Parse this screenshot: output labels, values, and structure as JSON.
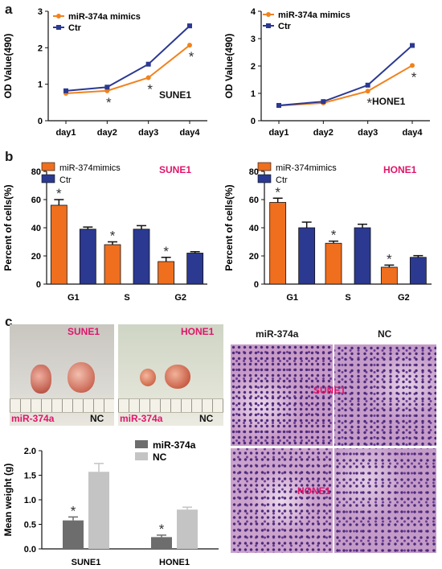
{
  "panels": {
    "a": "a",
    "b": "b",
    "c": "c"
  },
  "colors": {
    "orange": "#F0831F",
    "blue": "#2B3990",
    "orange_bar": "#EF6F1F",
    "pink": "#E0156A",
    "dark_grey": "#6D6D6D",
    "light_grey": "#C4C4C4"
  },
  "chart_data": [
    {
      "id": "a-sune1",
      "type": "line",
      "x": [
        "day1",
        "day2",
        "day3",
        "day4"
      ],
      "series": [
        {
          "name": "miR-374a mimics",
          "values": [
            0.75,
            0.82,
            1.18,
            2.07
          ]
        },
        {
          "name": "Ctr",
          "values": [
            0.82,
            0.92,
            1.55,
            2.6
          ]
        }
      ],
      "ylabel": "OD Value(490)",
      "ylim": [
        0,
        3
      ],
      "yticks": [
        "0",
        "1",
        "2",
        "3"
      ],
      "annotation": "SUNE1",
      "significance": [
        "",
        "*",
        "*",
        "*"
      ]
    },
    {
      "id": "a-hone1",
      "type": "line",
      "x": [
        "day1",
        "day2",
        "day3",
        "day4"
      ],
      "series": [
        {
          "name": "miR-374a mimics",
          "values": [
            0.55,
            0.65,
            1.08,
            2.02
          ]
        },
        {
          "name": "Ctr",
          "values": [
            0.56,
            0.7,
            1.3,
            2.75
          ]
        }
      ],
      "ylabel": "OD Value(490)",
      "ylim": [
        0,
        4
      ],
      "yticks": [
        "0",
        "1",
        "2",
        "3",
        "4"
      ],
      "annotation": "HONE1",
      "significance": [
        "",
        "",
        "*",
        "*"
      ]
    },
    {
      "id": "b-sune1",
      "type": "bar",
      "categories": [
        "G1",
        "S",
        "G2"
      ],
      "series": [
        {
          "name": "miR-374mimics",
          "values": [
            56,
            28,
            16
          ],
          "errors": [
            4,
            2,
            3
          ]
        },
        {
          "name": "Ctr",
          "values": [
            39,
            39,
            22
          ],
          "errors": [
            1.5,
            2.5,
            1
          ]
        }
      ],
      "ylabel": "Percent of cells(%)",
      "ylim": [
        0,
        80
      ],
      "yticks": [
        "0",
        "20",
        "40",
        "60",
        "80"
      ],
      "annotation": "SUNE1",
      "significance": [
        "*",
        "*",
        "*"
      ]
    },
    {
      "id": "b-hone1",
      "type": "bar",
      "categories": [
        "G1",
        "S",
        "G2"
      ],
      "series": [
        {
          "name": "miR-374mimics",
          "values": [
            58,
            29,
            12
          ],
          "errors": [
            3,
            1.5,
            1.5
          ]
        },
        {
          "name": "Ctr",
          "values": [
            40,
            40,
            19
          ],
          "errors": [
            4,
            2.5,
            1.2
          ]
        }
      ],
      "ylabel": "Percent of cells(%)",
      "ylim": [
        0,
        80
      ],
      "yticks": [
        "0",
        "20",
        "40",
        "60",
        "80"
      ],
      "annotation": "HONE1",
      "significance": [
        "*",
        "*",
        "*"
      ]
    },
    {
      "id": "c-weight",
      "type": "bar",
      "categories": [
        "SUNE1",
        "HONE1"
      ],
      "series": [
        {
          "name": "miR-374a",
          "values": [
            0.58,
            0.24
          ],
          "errors": [
            0.07,
            0.04
          ]
        },
        {
          "name": "NC",
          "values": [
            1.57,
            0.8
          ],
          "errors": [
            0.17,
            0.05
          ]
        }
      ],
      "ylabel": "Mean weight (g)",
      "ylim": [
        0,
        2.0
      ],
      "yticks": [
        "0.0",
        "0.5",
        "1.0",
        "1.5",
        "2.0"
      ],
      "significance": [
        "*",
        "*"
      ]
    }
  ],
  "photos": {
    "sune1": {
      "cell": "SUNE1",
      "left": "miR-374a",
      "right": "NC"
    },
    "hone1": {
      "cell": "HONE1",
      "left": "miR-374a",
      "right": "NC"
    }
  },
  "histology": {
    "col1": "miR-374a",
    "col2": "NC",
    "row1": "SUNE1",
    "row2": "HONE1"
  }
}
